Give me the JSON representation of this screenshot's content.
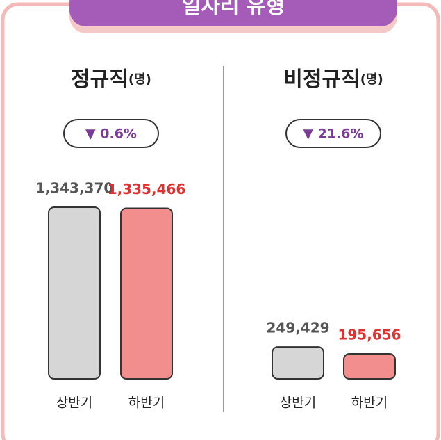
{
  "header": {
    "title": "일자리 유형"
  },
  "chart_data": [
    {
      "type": "bar",
      "title": "정규직",
      "unit": "(명)",
      "change": "▼ 0.6%",
      "categories": [
        "상반기",
        "하반기"
      ],
      "values": [
        1343370,
        1335466
      ],
      "value_labels": [
        "1,343,370",
        "1,335,466"
      ],
      "colors": [
        "#d6d6d6",
        "#f28e8e"
      ],
      "label_colors": [
        "#555555",
        "#e03131"
      ]
    },
    {
      "type": "bar",
      "title": "비정규직",
      "unit": "(명)",
      "change": "▼ 21.6%",
      "categories": [
        "상반기",
        "하반기"
      ],
      "values": [
        249429,
        195656
      ],
      "value_labels": [
        "249,429",
        "195,656"
      ],
      "colors": [
        "#d6d6d6",
        "#f28e8e"
      ],
      "label_colors": [
        "#555555",
        "#e03131"
      ]
    }
  ]
}
